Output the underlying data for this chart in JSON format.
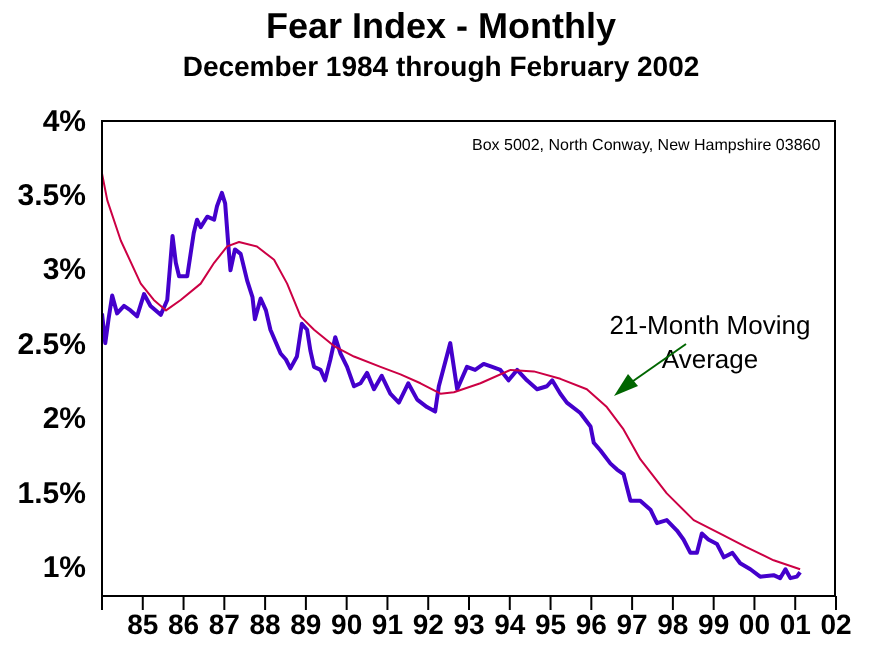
{
  "chart_data": {
    "type": "line",
    "title": "Fear Index - Monthly",
    "subtitle": "December 1984 through February 2002",
    "annotations": [
      "Box 5002, North Conway, New Hampshire 03860"
    ],
    "xlim": [
      1984,
      2002
    ],
    "xticks": [
      {
        "value": 1984,
        "label": null
      },
      {
        "value": 1985,
        "label": "85"
      },
      {
        "value": 1986,
        "label": "86"
      },
      {
        "value": 1987,
        "label": "87"
      },
      {
        "value": 1988,
        "label": "88"
      },
      {
        "value": 1989,
        "label": "89"
      },
      {
        "value": 1990,
        "label": "90"
      },
      {
        "value": 1991,
        "label": "91"
      },
      {
        "value": 1992,
        "label": "92"
      },
      {
        "value": 1993,
        "label": "93"
      },
      {
        "value": 1994,
        "label": "94"
      },
      {
        "value": 1995,
        "label": "95"
      },
      {
        "value": 1996,
        "label": "96"
      },
      {
        "value": 1997,
        "label": "97"
      },
      {
        "value": 1998,
        "label": "98"
      },
      {
        "value": 1999,
        "label": "99"
      },
      {
        "value": 2000,
        "label": "00"
      },
      {
        "value": 2001,
        "label": "01"
      },
      {
        "value": 2002,
        "label": "02"
      }
    ],
    "ylim": [
      0.8,
      4
    ],
    "yticks": [
      {
        "value": 1,
        "label": "1%"
      },
      {
        "value": 1.5,
        "label": "1.5%"
      },
      {
        "value": 2,
        "label": "2%"
      },
      {
        "value": 2.5,
        "label": "2.5%"
      },
      {
        "value": 3,
        "label": "3%"
      },
      {
        "value": 3.5,
        "label": "3.5%"
      },
      {
        "value": 4,
        "label": "4%"
      }
    ],
    "marker": "none",
    "line_style": "solid",
    "series": [
      {
        "color": "#4400cc",
        "x": [
          1984.0,
          1984.08,
          1984.16,
          1984.25,
          1984.37,
          1984.54,
          1984.7,
          1984.86,
          1985.03,
          1985.19,
          1985.44,
          1985.6,
          1985.73,
          1985.81,
          1985.89,
          1986.09,
          1986.25,
          1986.33,
          1986.42,
          1986.58,
          1986.75,
          1986.82,
          1986.94,
          1987.02,
          1987.1,
          1987.15,
          1987.26,
          1987.4,
          1987.56,
          1987.69,
          1987.75,
          1987.89,
          1988.02,
          1988.13,
          1988.38,
          1988.51,
          1988.62,
          1988.78,
          1988.9,
          1989.03,
          1989.11,
          1989.2,
          1989.36,
          1989.47,
          1989.6,
          1989.72,
          1989.85,
          1990.01,
          1990.18,
          1990.34,
          1990.5,
          1990.67,
          1990.86,
          1991.07,
          1991.28,
          1991.51,
          1991.73,
          1991.97,
          1992.17,
          1992.26,
          1992.54,
          1992.71,
          1992.95,
          1993.15,
          1993.36,
          1993.57,
          1993.77,
          1993.97,
          1994.18,
          1994.42,
          1994.67,
          1994.91,
          1995.04,
          1995.24,
          1995.4,
          1995.73,
          1995.98,
          1996.06,
          1996.22,
          1996.47,
          1996.63,
          1996.79,
          1996.96,
          1997.2,
          1997.45,
          1997.61,
          1997.85,
          1998.1,
          1998.26,
          1998.43,
          1998.59,
          1998.71,
          1998.87,
          1999.08,
          1999.25,
          1999.46,
          1999.65,
          1999.9,
          2000.14,
          2000.47,
          2000.63,
          2000.76,
          2000.88,
          2001.04,
          2001.12
        ],
        "values": [
          2.7,
          2.5,
          2.66,
          2.82,
          2.7,
          2.75,
          2.72,
          2.68,
          2.83,
          2.75,
          2.69,
          2.79,
          3.22,
          3.04,
          2.95,
          2.95,
          3.24,
          3.33,
          3.28,
          3.35,
          3.33,
          3.42,
          3.51,
          3.44,
          3.15,
          2.99,
          3.13,
          3.1,
          2.92,
          2.81,
          2.66,
          2.8,
          2.72,
          2.59,
          2.43,
          2.39,
          2.33,
          2.41,
          2.63,
          2.59,
          2.45,
          2.34,
          2.32,
          2.25,
          2.39,
          2.54,
          2.43,
          2.34,
          2.21,
          2.23,
          2.3,
          2.19,
          2.28,
          2.16,
          2.1,
          2.23,
          2.12,
          2.07,
          2.04,
          2.21,
          2.5,
          2.19,
          2.34,
          2.32,
          2.36,
          2.34,
          2.32,
          2.25,
          2.32,
          2.25,
          2.19,
          2.21,
          2.25,
          2.16,
          2.1,
          2.03,
          1.94,
          1.83,
          1.78,
          1.69,
          1.65,
          1.62,
          1.44,
          1.44,
          1.38,
          1.29,
          1.31,
          1.24,
          1.18,
          1.09,
          1.09,
          1.22,
          1.18,
          1.15,
          1.06,
          1.09,
          1.02,
          0.98,
          0.93,
          0.94,
          0.92,
          0.98,
          0.92,
          0.93,
          0.96
        ]
      },
      {
        "name": "21-Month Moving Average",
        "color": "#cc0044",
        "x": [
          1984.0,
          1984.13,
          1984.46,
          1984.95,
          1985.27,
          1985.57,
          1985.93,
          1986.42,
          1986.75,
          1987.07,
          1987.36,
          1987.8,
          1988.22,
          1988.54,
          1988.87,
          1989.2,
          1989.69,
          1990.18,
          1990.83,
          1991.32,
          1991.81,
          1992.3,
          1992.63,
          1993.28,
          1994.02,
          1994.59,
          1995.24,
          1995.89,
          1996.38,
          1996.79,
          1997.2,
          1997.85,
          1998.51,
          1999.16,
          1999.79,
          2000.47,
          2001.12
        ],
        "values": [
          3.64,
          3.46,
          3.19,
          2.9,
          2.79,
          2.72,
          2.79,
          2.9,
          3.04,
          3.15,
          3.18,
          3.15,
          3.06,
          2.9,
          2.68,
          2.59,
          2.48,
          2.41,
          2.34,
          2.29,
          2.23,
          2.16,
          2.17,
          2.23,
          2.32,
          2.31,
          2.26,
          2.19,
          2.07,
          1.92,
          1.72,
          1.49,
          1.31,
          1.22,
          1.13,
          1.04,
          0.98
        ]
      }
    ]
  }
}
